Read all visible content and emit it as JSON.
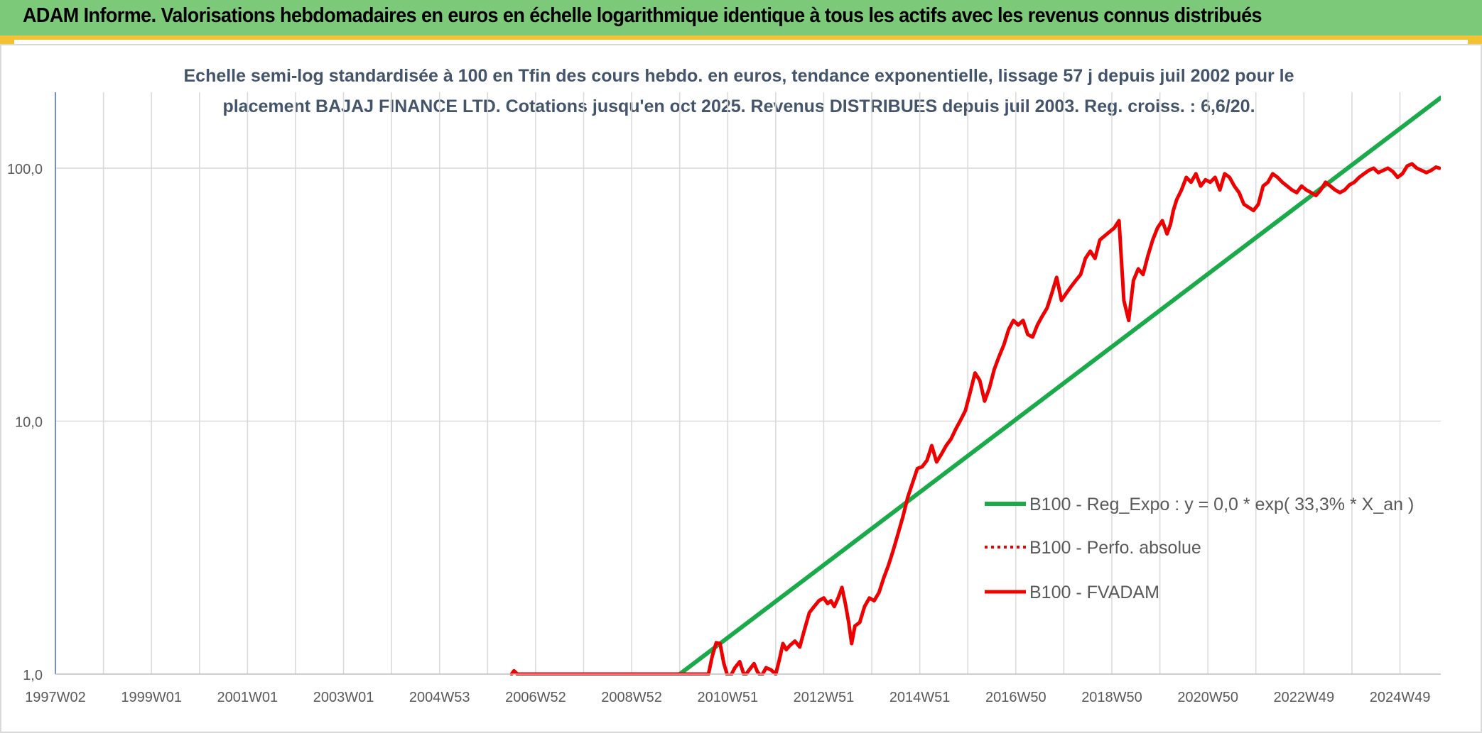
{
  "banner": {
    "title": "ADAM Informe. Valorisations hebdomadaires en euros en échelle logarithmique identique à tous les actifs avec les revenus connus distribués"
  },
  "colors": {
    "banner_bg": "#7dc97a",
    "accent_yellow": "#f2c232",
    "regression_line": "#1aaa4a",
    "fvadam_line": "#ee0000",
    "gridline": "#d9d9d9",
    "axis_text": "#595959"
  },
  "chart_data": {
    "type": "line",
    "title_line1": "Echelle semi-log standardisée à 100 en Tfin des cours hebdo. en euros, tendance exponentielle, lissage 57 j depuis juil 2002 pour le",
    "title_line2": "placement BAJAJ FINANCE LTD. Cotations jusqu'en oct 2025. Revenus DISTRIBUES depuis juil 2003. Reg. croiss. : 6,6/20.",
    "y_scale": "log",
    "ylim": [
      1,
      200
    ],
    "y_ticks": [
      {
        "value": 1,
        "label": "1,0"
      },
      {
        "value": 10,
        "label": "10,0"
      },
      {
        "value": 100,
        "label": "100,0"
      }
    ],
    "xlim": [
      1997.0,
      2025.85
    ],
    "x_ticks": [
      {
        "value": 1997.0,
        "label": "1997W02"
      },
      {
        "value": 1999.0,
        "label": "1999W01"
      },
      {
        "value": 2001.0,
        "label": "2001W01"
      },
      {
        "value": 2003.0,
        "label": "2003W01"
      },
      {
        "value": 2005.0,
        "label": "2004W53"
      },
      {
        "value": 2007.0,
        "label": "2006W52"
      },
      {
        "value": 2009.0,
        "label": "2008W52"
      },
      {
        "value": 2011.0,
        "label": "2010W51"
      },
      {
        "value": 2013.0,
        "label": "2012W51"
      },
      {
        "value": 2015.0,
        "label": "2014W51"
      },
      {
        "value": 2017.0,
        "label": "2016W50"
      },
      {
        "value": 2019.0,
        "label": "2018W50"
      },
      {
        "value": 2021.0,
        "label": "2020W50"
      },
      {
        "value": 2023.0,
        "label": "2022W49"
      },
      {
        "value": 2025.0,
        "label": "2024W49"
      }
    ],
    "legend_position": "center-right",
    "series": [
      {
        "name": "B100 - Reg_Expo : y = 0,0 * exp( 33,3% *  X_an )",
        "style": "solid-green",
        "x": [
          2010.0,
          2025.85
        ],
        "y": [
          1.0,
          190.0
        ]
      },
      {
        "name": "B100 - Perfo. absolue",
        "style": "dotted-red",
        "x": [],
        "y": []
      },
      {
        "name": "B100 - FVADAM",
        "style": "solid-red",
        "x": [
          2006.5,
          2006.55,
          2006.62,
          2010.6,
          2010.68,
          2010.76,
          2010.84,
          2010.92,
          2011.0,
          2011.08,
          2011.15,
          2011.25,
          2011.35,
          2011.45,
          2011.55,
          2011.62,
          2011.7,
          2011.8,
          2011.9,
          2012.0,
          2012.08,
          2012.15,
          2012.22,
          2012.3,
          2012.4,
          2012.5,
          2012.6,
          2012.7,
          2012.8,
          2012.9,
          2013.0,
          2013.08,
          2013.15,
          2013.22,
          2013.3,
          2013.38,
          2013.45,
          2013.52,
          2013.58,
          2013.65,
          2013.75,
          2013.85,
          2013.95,
          2014.05,
          2014.15,
          2014.25,
          2014.35,
          2014.45,
          2014.55,
          2014.65,
          2014.75,
          2014.85,
          2014.95,
          2015.05,
          2015.15,
          2015.25,
          2015.35,
          2015.45,
          2015.55,
          2015.65,
          2015.75,
          2015.85,
          2015.95,
          2016.05,
          2016.15,
          2016.25,
          2016.35,
          2016.45,
          2016.55,
          2016.65,
          2016.75,
          2016.85,
          2016.95,
          2017.05,
          2017.15,
          2017.25,
          2017.35,
          2017.45,
          2017.55,
          2017.65,
          2017.75,
          2017.85,
          2017.95,
          2018.05,
          2018.15,
          2018.25,
          2018.35,
          2018.45,
          2018.55,
          2018.65,
          2018.75,
          2018.85,
          2018.95,
          2019.05,
          2019.15,
          2019.25,
          2019.35,
          2019.45,
          2019.55,
          2019.65,
          2019.75,
          2019.85,
          2019.95,
          2020.05,
          2020.15,
          2020.22,
          2020.28,
          2020.35,
          2020.45,
          2020.55,
          2020.65,
          2020.75,
          2020.85,
          2020.95,
          2021.05,
          2021.15,
          2021.25,
          2021.35,
          2021.45,
          2021.55,
          2021.65,
          2021.75,
          2021.85,
          2021.95,
          2022.05,
          2022.15,
          2022.25,
          2022.35,
          2022.45,
          2022.55,
          2022.65,
          2022.75,
          2022.85,
          2022.95,
          2023.05,
          2023.15,
          2023.25,
          2023.35,
          2023.45,
          2023.55,
          2023.65,
          2023.75,
          2023.85,
          2023.95,
          2024.05,
          2024.15,
          2024.25,
          2024.35,
          2024.45,
          2024.55,
          2024.65,
          2024.75,
          2024.85,
          2024.95,
          2025.05,
          2025.15,
          2025.25,
          2025.35,
          2025.45,
          2025.55,
          2025.65,
          2025.75,
          2025.82
        ],
        "y": [
          1.0,
          1.03,
          1.0,
          1.0,
          1.18,
          1.33,
          1.32,
          1.1,
          0.98,
          1.0,
          1.06,
          1.12,
          0.98,
          1.04,
          1.1,
          1.02,
          0.98,
          1.06,
          1.04,
          1.0,
          1.15,
          1.32,
          1.25,
          1.3,
          1.35,
          1.28,
          1.5,
          1.75,
          1.85,
          1.95,
          2.0,
          1.9,
          1.95,
          1.85,
          2.0,
          2.2,
          1.9,
          1.6,
          1.32,
          1.55,
          1.6,
          1.85,
          2.0,
          1.95,
          2.1,
          2.4,
          2.7,
          3.1,
          3.6,
          4.2,
          5.0,
          5.7,
          6.5,
          6.6,
          7.0,
          8.0,
          6.9,
          7.4,
          8.0,
          8.5,
          9.3,
          10.1,
          11.0,
          13.0,
          15.5,
          14.5,
          12.0,
          13.5,
          16.0,
          18.0,
          20.0,
          23.0,
          25.0,
          24.0,
          25.0,
          22.0,
          21.5,
          24.0,
          26.0,
          28.0,
          32.0,
          37.0,
          30.0,
          32.0,
          34.0,
          36.0,
          38.0,
          44.0,
          47.0,
          44.0,
          52.0,
          54.0,
          56.0,
          58.0,
          62.0,
          30.0,
          25.0,
          36.0,
          40.0,
          38.0,
          45.0,
          52.0,
          58.0,
          62.0,
          55.0,
          60.0,
          68.0,
          75.0,
          82.0,
          92.0,
          88.0,
          95.0,
          85.0,
          90.0,
          88.0,
          92.0,
          82.0,
          95.0,
          92.0,
          85.0,
          80.0,
          72.0,
          70.0,
          68.0,
          72.0,
          85.0,
          88.0,
          95.0,
          92.0,
          88.0,
          85.0,
          82.0,
          80.0,
          85.0,
          82.0,
          80.0,
          78.0,
          82.0,
          88.0,
          85.0,
          82.0,
          80.0,
          82.0,
          86.0,
          88.0,
          92.0,
          95.0,
          98.0,
          100.0,
          96.0,
          98.0,
          100.0,
          97.0,
          92.0,
          95.0,
          102.0,
          104.0,
          100.0,
          98.0,
          96.0,
          98.0,
          101.0,
          100.0
        ]
      }
    ]
  }
}
